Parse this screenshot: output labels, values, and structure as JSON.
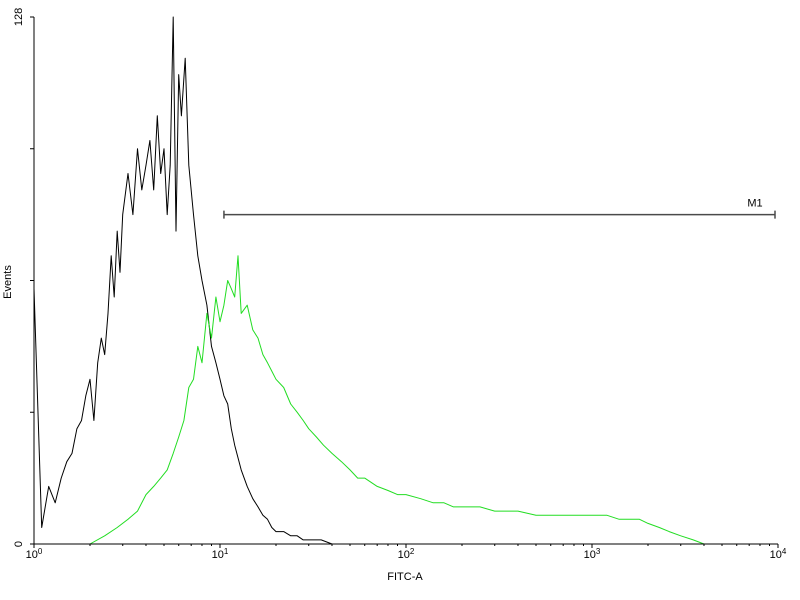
{
  "chart_data": {
    "type": "line",
    "xlabel": "FITC-A",
    "ylabel": "Events",
    "x_scale": "log",
    "xlim": [
      1,
      10000
    ],
    "ylim": [
      0,
      128
    ],
    "x_ticks": [
      {
        "value": 1,
        "base": "10",
        "exp": "0"
      },
      {
        "value": 10,
        "base": "10",
        "exp": "1"
      },
      {
        "value": 100,
        "base": "10",
        "exp": "2"
      },
      {
        "value": 1000,
        "base": "10",
        "exp": "3"
      },
      {
        "value": 10000,
        "base": "10",
        "exp": "4"
      }
    ],
    "y_ticks": [
      {
        "value": 0,
        "label": "0"
      },
      {
        "value": 32,
        "label": ""
      },
      {
        "value": 64,
        "label": ""
      },
      {
        "value": 96,
        "label": ""
      },
      {
        "value": 128,
        "label": "128"
      }
    ],
    "grid": false,
    "series": [
      {
        "color": "#000000",
        "points": [
          [
            1.0,
            62
          ],
          [
            1.1,
            4
          ],
          [
            1.2,
            14
          ],
          [
            1.3,
            10
          ],
          [
            1.4,
            16
          ],
          [
            1.5,
            20
          ],
          [
            1.6,
            22
          ],
          [
            1.7,
            28
          ],
          [
            1.8,
            30
          ],
          [
            1.9,
            36
          ],
          [
            2.0,
            40
          ],
          [
            2.1,
            30
          ],
          [
            2.2,
            44
          ],
          [
            2.3,
            50
          ],
          [
            2.4,
            46
          ],
          [
            2.5,
            56
          ],
          [
            2.6,
            70
          ],
          [
            2.7,
            60
          ],
          [
            2.8,
            76
          ],
          [
            2.9,
            66
          ],
          [
            3.0,
            80
          ],
          [
            3.2,
            90
          ],
          [
            3.4,
            80
          ],
          [
            3.6,
            96
          ],
          [
            3.8,
            86
          ],
          [
            4.0,
            92
          ],
          [
            4.2,
            98
          ],
          [
            4.4,
            86
          ],
          [
            4.6,
            104
          ],
          [
            4.8,
            90
          ],
          [
            5.0,
            96
          ],
          [
            5.2,
            80
          ],
          [
            5.4,
            92
          ],
          [
            5.6,
            128
          ],
          [
            5.8,
            76
          ],
          [
            6.0,
            114
          ],
          [
            6.2,
            104
          ],
          [
            6.5,
            118
          ],
          [
            6.8,
            92
          ],
          [
            7.2,
            80
          ],
          [
            7.6,
            70
          ],
          [
            8.0,
            64
          ],
          [
            8.5,
            58
          ],
          [
            9.0,
            48
          ],
          [
            9.5,
            44
          ],
          [
            10.0,
            40
          ],
          [
            10.5,
            36
          ],
          [
            11.0,
            34
          ],
          [
            11.5,
            28
          ],
          [
            12.0,
            24
          ],
          [
            13.0,
            18
          ],
          [
            14.0,
            14
          ],
          [
            15.0,
            11
          ],
          [
            16.0,
            9
          ],
          [
            17.0,
            7
          ],
          [
            18.0,
            6
          ],
          [
            19.0,
            4
          ],
          [
            20.0,
            3
          ],
          [
            22.0,
            3
          ],
          [
            24.0,
            2
          ],
          [
            26.0,
            2
          ],
          [
            28.0,
            1
          ],
          [
            30.0,
            1
          ],
          [
            35.0,
            1
          ],
          [
            40.0,
            0
          ],
          [
            50.0,
            0
          ],
          [
            60.0,
            0
          ]
        ]
      },
      {
        "color": "#22dd22",
        "points": [
          [
            2.0,
            0
          ],
          [
            2.4,
            2
          ],
          [
            2.8,
            4
          ],
          [
            3.2,
            6
          ],
          [
            3.6,
            8
          ],
          [
            4.0,
            12
          ],
          [
            4.4,
            14
          ],
          [
            4.8,
            16
          ],
          [
            5.2,
            18
          ],
          [
            5.6,
            22
          ],
          [
            6.0,
            26
          ],
          [
            6.4,
            30
          ],
          [
            6.8,
            38
          ],
          [
            7.2,
            40
          ],
          [
            7.6,
            48
          ],
          [
            8.0,
            44
          ],
          [
            8.5,
            56
          ],
          [
            9.0,
            50
          ],
          [
            9.5,
            60
          ],
          [
            10.0,
            54
          ],
          [
            10.5,
            58
          ],
          [
            11.0,
            64
          ],
          [
            11.5,
            62
          ],
          [
            12.0,
            60
          ],
          [
            12.5,
            70
          ],
          [
            13.0,
            56
          ],
          [
            14.0,
            58
          ],
          [
            15.0,
            52
          ],
          [
            16.0,
            50
          ],
          [
            17.0,
            46
          ],
          [
            18.0,
            44
          ],
          [
            19.0,
            42
          ],
          [
            20.0,
            40
          ],
          [
            22.0,
            38
          ],
          [
            24.0,
            34
          ],
          [
            26.0,
            32
          ],
          [
            28.0,
            30
          ],
          [
            30.0,
            28
          ],
          [
            33.0,
            26
          ],
          [
            36.0,
            24
          ],
          [
            40.0,
            22
          ],
          [
            45.0,
            20
          ],
          [
            50.0,
            18
          ],
          [
            55.0,
            16
          ],
          [
            60.0,
            16
          ],
          [
            70.0,
            14
          ],
          [
            80.0,
            13
          ],
          [
            90.0,
            12
          ],
          [
            100,
            12
          ],
          [
            120,
            11
          ],
          [
            140,
            10
          ],
          [
            160,
            10
          ],
          [
            180,
            9
          ],
          [
            200,
            9
          ],
          [
            250,
            9
          ],
          [
            300,
            8
          ],
          [
            400,
            8
          ],
          [
            500,
            7
          ],
          [
            600,
            7
          ],
          [
            700,
            7
          ],
          [
            800,
            7
          ],
          [
            900,
            7
          ],
          [
            1000,
            7
          ],
          [
            1200,
            7
          ],
          [
            1400,
            6
          ],
          [
            1600,
            6
          ],
          [
            1800,
            6
          ],
          [
            2000,
            5
          ],
          [
            2300,
            4
          ],
          [
            2600,
            3
          ],
          [
            3000,
            2
          ],
          [
            3500,
            1
          ],
          [
            4000,
            0
          ],
          [
            5000,
            0
          ]
        ]
      }
    ],
    "markers": [
      {
        "label": "M1",
        "x_start": 10.5,
        "x_end": 10000,
        "y": 80
      }
    ]
  }
}
